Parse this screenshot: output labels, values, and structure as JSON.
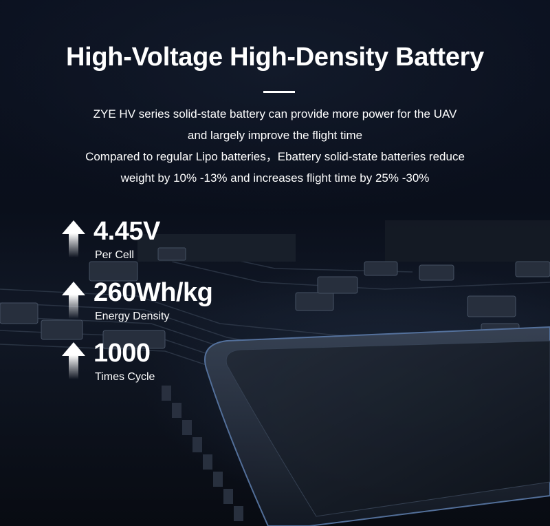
{
  "title": "High-Voltage High-Density Battery",
  "description": [
    "ZYE HV series solid-state battery can provide more power for the UAV",
    "and largely improve the flight time",
    "Compared to regular Lipo batteries，Ebattery solid-state batteries reduce",
    "weight by 10% -13% and increases flight time by 25% -30%"
  ],
  "stats": [
    {
      "value": "4.45V",
      "label": "Per Cell",
      "icon": "arrow-up-icon"
    },
    {
      "value": "260Wh/kg",
      "label": "Energy Density",
      "icon": "arrow-up-icon"
    },
    {
      "value": "1000",
      "label": "Times Cycle",
      "icon": "arrow-up-icon"
    }
  ]
}
